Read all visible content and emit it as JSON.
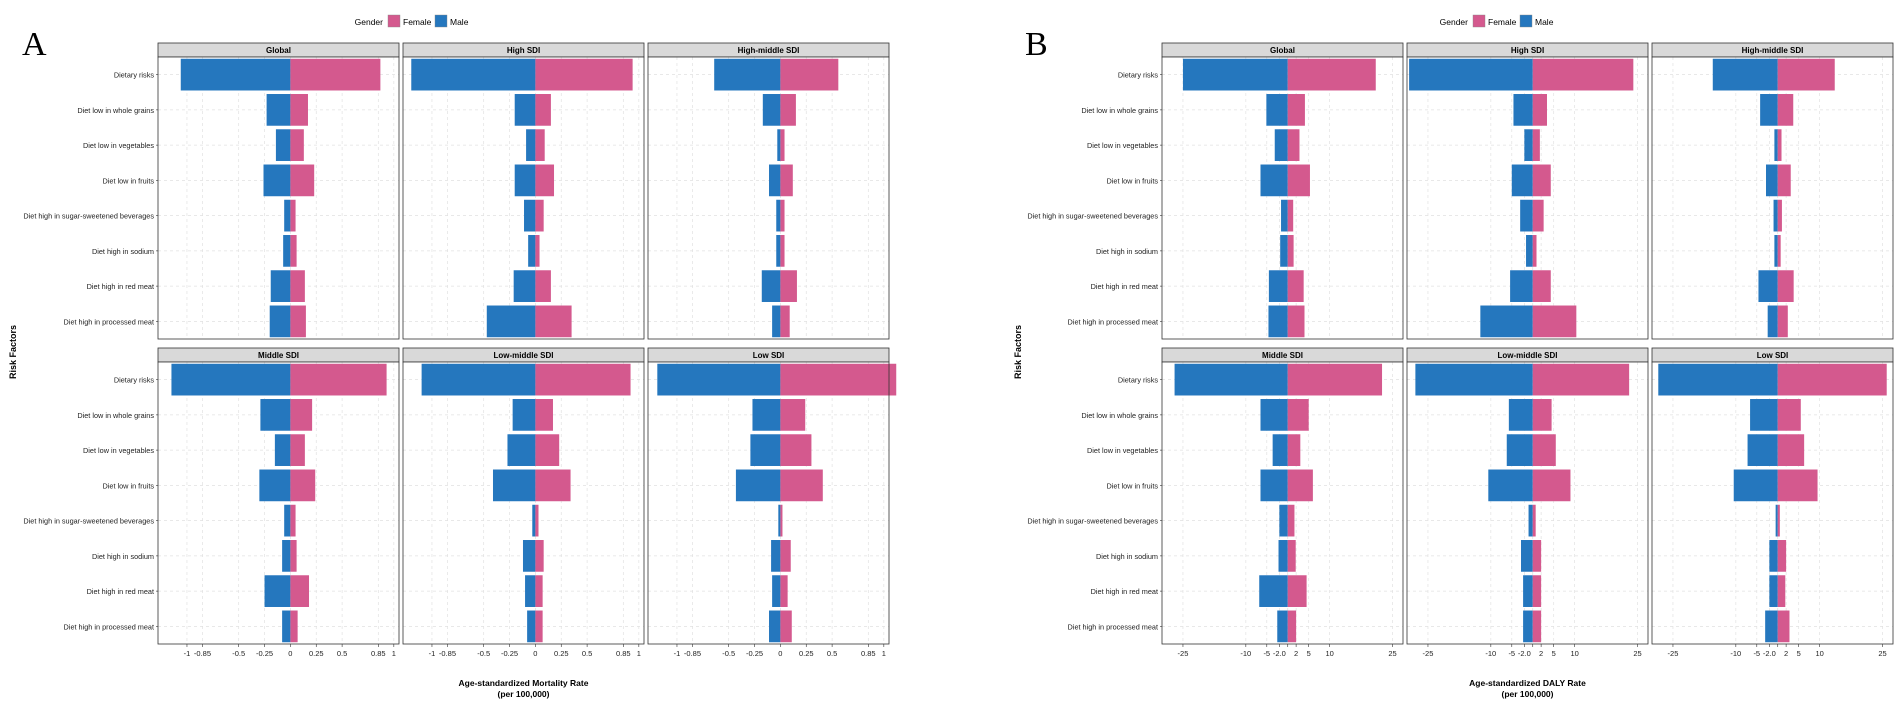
{
  "figure": {
    "colors": {
      "female": "#d4598e",
      "male": "#2577be"
    }
  },
  "chart_data": [
    {
      "type": "bar",
      "panel_label": "A",
      "legend": {
        "title": "Gender",
        "entries": [
          "Female",
          "Male"
        ],
        "placement": "top-center"
      },
      "ylabel": "Risk Factors",
      "xlabel": [
        "Age-standardized Mortality Rate",
        "(per 100,000)"
      ],
      "xlim": [
        -1.28,
        1.05
      ],
      "x_ticks": [
        -1,
        -0.85,
        -0.5,
        -0.25,
        0,
        0.25,
        0.5,
        0.85,
        1
      ],
      "x_tick_labels": [
        "-1",
        "-0.85",
        "-0.5",
        "-0.25",
        "0",
        "0.25",
        "0.5",
        "0.85",
        "1"
      ],
      "categories": [
        "Dietary risks",
        "Diet low in whole grains",
        "Diet low in vegetables",
        "Diet low in fruits",
        "Diet high in sugar-sweetened beverages",
        "Diet high in sodium",
        "Diet high in red meat",
        "Diet high in processed meat"
      ],
      "facets": [
        {
          "title": "Global",
          "male": [
            -1.06,
            -0.23,
            -0.14,
            -0.26,
            -0.06,
            -0.07,
            -0.19,
            -0.2
          ],
          "female": [
            0.87,
            0.17,
            0.13,
            0.23,
            0.05,
            0.06,
            0.14,
            0.15
          ]
        },
        {
          "title": "High SDI",
          "male": [
            -1.2,
            -0.2,
            -0.09,
            -0.2,
            -0.11,
            -0.07,
            -0.21,
            -0.47
          ],
          "female": [
            0.94,
            0.15,
            0.09,
            0.18,
            0.08,
            0.04,
            0.15,
            0.35
          ]
        },
        {
          "title": "High-middle SDI",
          "male": [
            -0.64,
            -0.17,
            -0.03,
            -0.11,
            -0.04,
            -0.04,
            -0.18,
            -0.08
          ],
          "female": [
            0.56,
            0.15,
            0.04,
            0.12,
            0.04,
            0.04,
            0.16,
            0.09
          ]
        },
        {
          "title": "Middle SDI",
          "male": [
            -1.15,
            -0.29,
            -0.15,
            -0.3,
            -0.06,
            -0.08,
            -0.25,
            -0.08
          ],
          "female": [
            0.93,
            0.21,
            0.14,
            0.24,
            0.05,
            0.06,
            0.18,
            0.07
          ]
        },
        {
          "title": "Low-middle SDI",
          "male": [
            -1.1,
            -0.22,
            -0.27,
            -0.41,
            -0.03,
            -0.12,
            -0.1,
            -0.08
          ],
          "female": [
            0.92,
            0.17,
            0.23,
            0.34,
            0.03,
            0.08,
            0.07,
            0.07
          ]
        },
        {
          "title": "Low SDI",
          "male": [
            -1.19,
            -0.27,
            -0.29,
            -0.43,
            -0.02,
            -0.09,
            -0.08,
            -0.11
          ],
          "female": [
            1.12,
            0.24,
            0.3,
            0.41,
            0.02,
            0.1,
            0.07,
            0.11
          ]
        }
      ]
    },
    {
      "type": "bar",
      "panel_label": "B",
      "legend": {
        "title": "Gender",
        "entries": [
          "Female",
          "Male"
        ],
        "placement": "top-center"
      },
      "ylabel": "Risk Factors",
      "xlabel": [
        "Age-standardized DALY Rate",
        "(per 100,000)"
      ],
      "xlim": [
        -30,
        27.5
      ],
      "x_ticks": [
        -25,
        -10,
        -5,
        -2,
        0,
        2,
        5,
        10,
        25
      ],
      "x_tick_labels": [
        "-25",
        "-10",
        "-5",
        "-2.0",
        "",
        "2",
        "5",
        "10",
        "25"
      ],
      "categories": [
        "Dietary risks",
        "Diet low in whole grains",
        "Diet low in vegetables",
        "Diet low in fruits",
        "Diet high in sugar-sweetened beverages",
        "Diet high in sodium",
        "Diet high in red meat",
        "Diet high in processed meat"
      ],
      "facets": [
        {
          "title": "Global",
          "male": [
            -25,
            -5.1,
            -3.1,
            -6.5,
            -1.6,
            -1.8,
            -4.5,
            -4.6
          ],
          "female": [
            21,
            4.1,
            2.8,
            5.3,
            1.3,
            1.4,
            3.8,
            4.0
          ]
        },
        {
          "title": "High SDI",
          "male": [
            -29.5,
            -4.6,
            -2.0,
            -5.0,
            -3.0,
            -1.6,
            -5.4,
            -12.5
          ],
          "female": [
            24,
            3.4,
            1.7,
            4.3,
            2.6,
            0.9,
            4.3,
            10.4
          ]
        },
        {
          "title": "High-middle SDI",
          "male": [
            -15.5,
            -4.2,
            -0.8,
            -2.8,
            -1.0,
            -0.8,
            -4.6,
            -2.4
          ],
          "female": [
            13.6,
            3.7,
            0.9,
            3.1,
            1.0,
            0.7,
            3.8,
            2.4
          ]
        },
        {
          "title": "Middle SDI",
          "male": [
            -27,
            -6.5,
            -3.6,
            -6.5,
            -2.0,
            -2.2,
            -6.8,
            -2.5
          ],
          "female": [
            22.5,
            5.0,
            3.0,
            6.0,
            1.6,
            1.9,
            4.5,
            2.0
          ]
        },
        {
          "title": "Low-middle SDI",
          "male": [
            -28,
            -5.7,
            -6.2,
            -10.6,
            -1.0,
            -2.8,
            -2.3,
            -2.3
          ],
          "female": [
            23,
            4.5,
            5.5,
            9.0,
            0.7,
            2.0,
            2.0,
            2.0
          ]
        },
        {
          "title": "Low SDI",
          "male": [
            -28.5,
            -6.6,
            -7.2,
            -10.5,
            -0.5,
            -2.0,
            -2.0,
            -3.0
          ],
          "female": [
            26,
            5.5,
            6.3,
            9.5,
            0.5,
            2.0,
            1.8,
            2.8
          ]
        }
      ]
    }
  ]
}
